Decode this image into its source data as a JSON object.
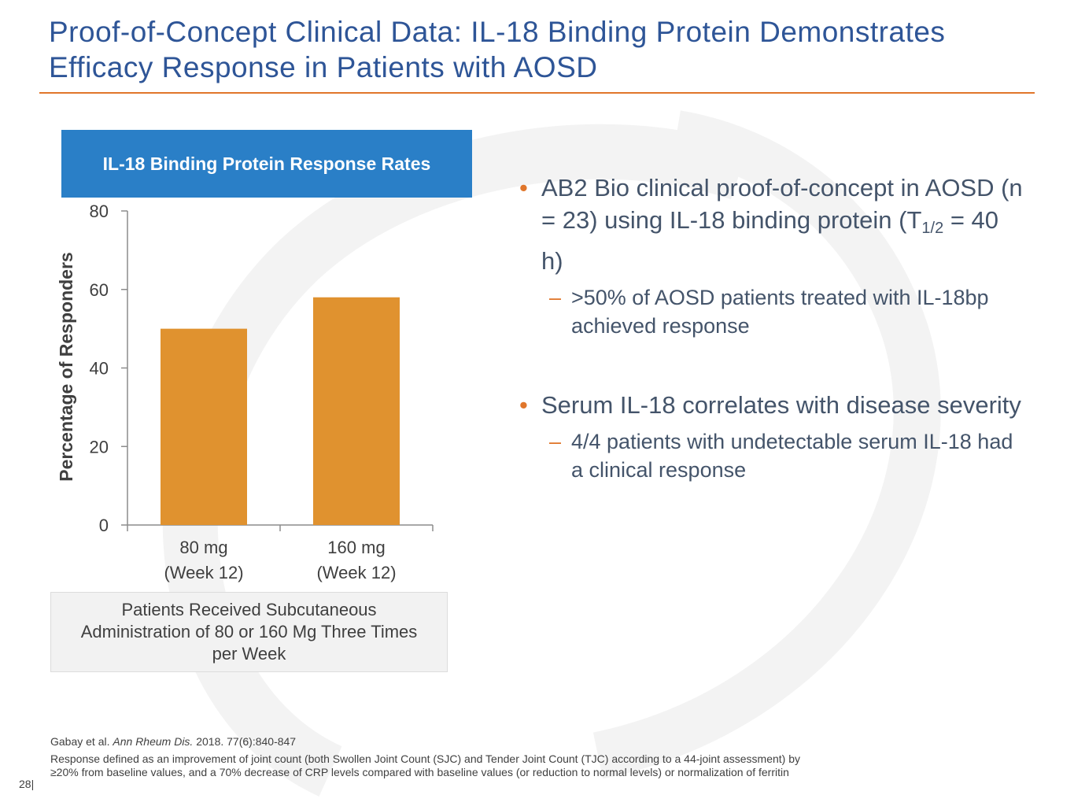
{
  "slide": {
    "title": "Proof-of-Concept Clinical Data: IL-18 Binding Protein Demonstrates Efficacy Response in Patients with AOSD",
    "accent_color": "#e0762b",
    "title_color": "#2e5597",
    "page_number": "28|"
  },
  "chart_header": "IL-18 Binding Protein Response Rates",
  "chart_data": {
    "type": "bar",
    "categories": [
      "80 mg",
      "160 mg"
    ],
    "category_sublabels": [
      "(Week 12)",
      "(Week 12)"
    ],
    "values": [
      50,
      58
    ],
    "ylabel": "Percentage of Responders",
    "xlabel": "",
    "ylim": [
      0,
      80
    ],
    "yticks": [
      0,
      20,
      40,
      60,
      80
    ],
    "bar_color": "#e0922f",
    "grid": false
  },
  "chart_note": "Patients Received Subcutaneous Administration of 80 or 160 Mg Three Times per Week",
  "bullets": [
    {
      "text_pre": "AB2 Bio clinical proof-of-concept in AOSD (n = 23) using IL-18 binding protein (T",
      "subscript": "1/2",
      "text_post": " = 40 h)",
      "sub_items": [
        ">50% of AOSD patients treated with IL-18bp achieved response"
      ]
    },
    {
      "text": "Serum IL-18 correlates with disease severity",
      "sub_items": [
        "4/4 patients with undetectable serum IL-18 had a clinical response"
      ]
    }
  ],
  "footnotes": {
    "citation_pre": "Gabay et al. ",
    "citation_journal": "Ann Rheum Dis.",
    "citation_post": " 2018. 77(6):840-847",
    "definition": "Response defined as an improvement of joint count (both Swollen Joint Count (SJC) and Tender Joint Count (TJC) according to a 44-joint assessment) by ≥20% from baseline values, and a 70% decrease of CRP levels compared with baseline values (or reduction to normal levels) or normalization of ferritin"
  }
}
